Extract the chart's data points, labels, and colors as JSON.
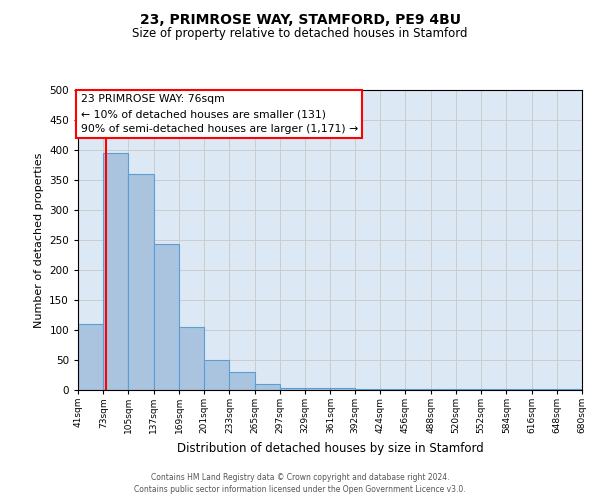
{
  "title": "23, PRIMROSE WAY, STAMFORD, PE9 4BU",
  "subtitle": "Size of property relative to detached houses in Stamford",
  "xlabel": "Distribution of detached houses by size in Stamford",
  "ylabel": "Number of detached properties",
  "bin_edges": [
    41,
    73,
    105,
    137,
    169,
    201,
    233,
    265,
    297,
    329,
    361,
    392,
    424,
    456,
    488,
    520,
    552,
    584,
    616,
    648,
    680
  ],
  "bin_counts": [
    110,
    395,
    360,
    243,
    105,
    50,
    30,
    10,
    3,
    3,
    3,
    1,
    1,
    1,
    1,
    1,
    1,
    1,
    1,
    1
  ],
  "bar_color": "#aac4e0",
  "bar_edgecolor": "#5a9fd4",
  "bar_linewidth": 0.8,
  "ylim": [
    0,
    500
  ],
  "yticks": [
    0,
    50,
    100,
    150,
    200,
    250,
    300,
    350,
    400,
    450,
    500
  ],
  "property_line_x": 76,
  "property_line_color": "red",
  "annotation_line1": "23 PRIMROSE WAY: 76sqm",
  "annotation_line2": "← 10% of detached houses are smaller (131)",
  "annotation_line3": "90% of semi-detached houses are larger (1,171) →",
  "grid_color": "#cccccc",
  "background_color": "#dce9f5",
  "footer_line1": "Contains HM Land Registry data © Crown copyright and database right 2024.",
  "footer_line2": "Contains public sector information licensed under the Open Government Licence v3.0.",
  "tick_labels": [
    "41sqm",
    "73sqm",
    "105sqm",
    "137sqm",
    "169sqm",
    "201sqm",
    "233sqm",
    "265sqm",
    "297sqm",
    "329sqm",
    "361sqm",
    "392sqm",
    "424sqm",
    "456sqm",
    "488sqm",
    "520sqm",
    "552sqm",
    "584sqm",
    "616sqm",
    "648sqm",
    "680sqm"
  ]
}
